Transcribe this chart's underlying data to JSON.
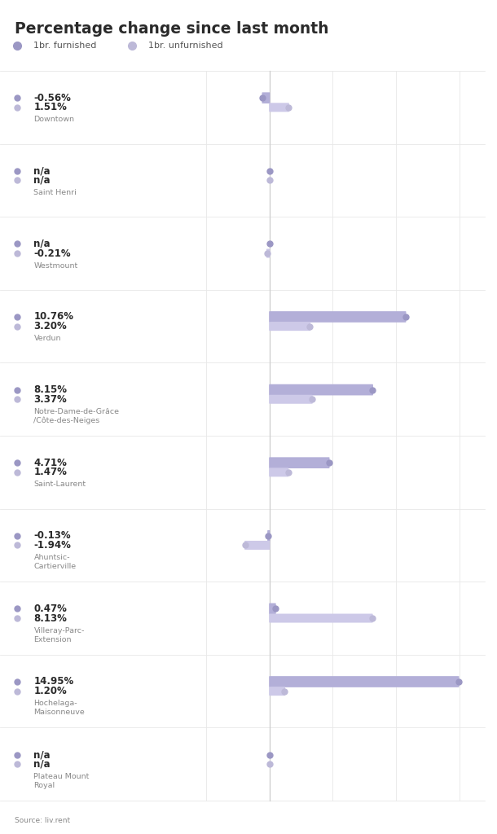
{
  "title": "Percentage change since last month",
  "legend": {
    "furnished_label": "1br. furnished",
    "unfurnished_label": "1br. unfurnished"
  },
  "neighbourhoods": [
    {
      "name": "Downtown",
      "furnished": -0.56,
      "unfurnished": 1.51,
      "furnished_label": "-0.56%",
      "unfurnished_label": "1.51%"
    },
    {
      "name": "Saint Henri",
      "furnished": null,
      "unfurnished": null,
      "furnished_label": "n/a",
      "unfurnished_label": "n/a"
    },
    {
      "name": "Westmount",
      "furnished": null,
      "unfurnished": -0.21,
      "furnished_label": "n/a",
      "unfurnished_label": "-0.21%"
    },
    {
      "name": "Verdun",
      "furnished": 10.76,
      "unfurnished": 3.2,
      "furnished_label": "10.76%",
      "unfurnished_label": "3.20%"
    },
    {
      "name": "Notre-Dame-de-Grâce\n/Côte-des-Neiges",
      "furnished": 8.15,
      "unfurnished": 3.37,
      "furnished_label": "8.15%",
      "unfurnished_label": "3.37%"
    },
    {
      "name": "Saint-Laurent",
      "furnished": 4.71,
      "unfurnished": 1.47,
      "furnished_label": "4.71%",
      "unfurnished_label": "1.47%"
    },
    {
      "name": "Ahuntsic-\nCartierville",
      "furnished": -0.13,
      "unfurnished": -1.94,
      "furnished_label": "-0.13%",
      "unfurnished_label": "-1.94%"
    },
    {
      "name": "Villeray-Parc-\nExtension",
      "furnished": 0.47,
      "unfurnished": 8.13,
      "furnished_label": "0.47%",
      "unfurnished_label": "8.13%"
    },
    {
      "name": "Hochelaga-\nMaisonneuve",
      "furnished": 14.95,
      "unfurnished": 1.2,
      "furnished_label": "14.95%",
      "unfurnished_label": "1.20%"
    },
    {
      "name": "Plateau Mount\nRoyal",
      "furnished": null,
      "unfurnished": null,
      "furnished_label": "n/a",
      "unfurnished_label": "n/a"
    }
  ],
  "bar_color_furnished": "#b3afd8",
  "bar_color_unfurnished": "#cdc9e8",
  "dot_color_furnished": "#9b97c4",
  "dot_color_unfurnished": "#bdb9d8",
  "zero_line_color": "#cccccc",
  "grid_color": "#e8e8e8",
  "background_color": "#ffffff",
  "text_color_dark": "#2a2a2a",
  "text_color_label": "#555555",
  "text_color_light": "#888888",
  "source_text": "Source: liv.rent",
  "xlim": [
    -5,
    17
  ]
}
